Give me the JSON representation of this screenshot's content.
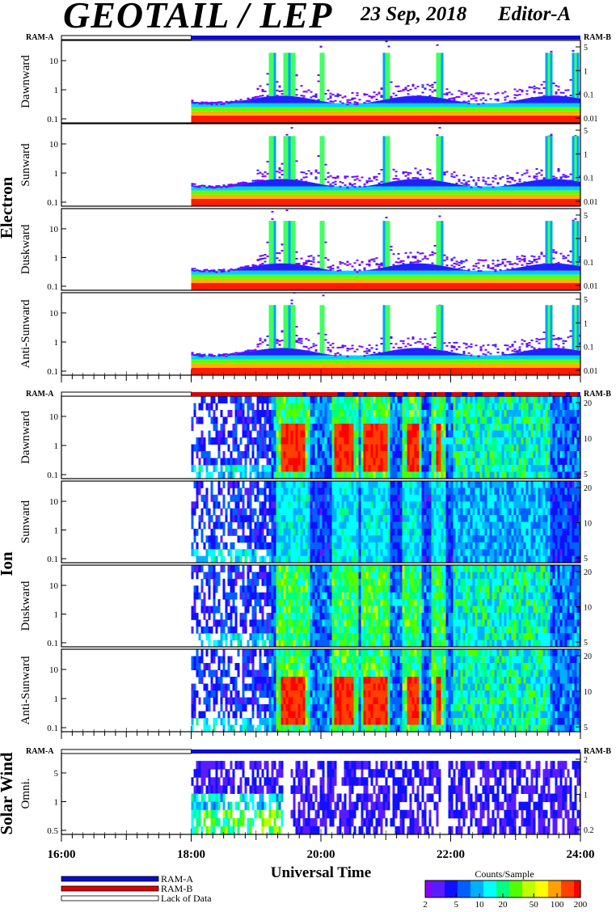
{
  "header": {
    "title": "GEOTAIL / LEP",
    "date": "23 Sep, 2018",
    "editor": "Editor-A"
  },
  "colors": {
    "ram_a": "#0a0ad0",
    "ram_b": "#e00000",
    "lack_of_data": "#ffffff",
    "colormap": [
      "#8800ff",
      "#5a1cff",
      "#1010ff",
      "#0060ff",
      "#00b0ff",
      "#00ffff",
      "#00ff80",
      "#50ff00",
      "#c0ff00",
      "#ffff00",
      "#ffa000",
      "#ff4000",
      "#ff0000"
    ]
  },
  "chart_data": {
    "type": "heatmap",
    "x_axis": {
      "label": "Universal Time",
      "range": [
        "16:00",
        "24:00"
      ],
      "major_ticks": [
        "16:00",
        "18:00",
        "20:00",
        "22:00",
        "24:00"
      ],
      "data_start": "18:00"
    },
    "panel_groups": [
      {
        "name": "Electron",
        "ram_left": "RAM-A",
        "ram_right": "RAM-B",
        "ram_bar": [
          {
            "from": "16:00",
            "to": "18:00",
            "mode": "lack_of_data"
          },
          {
            "from": "18:00",
            "to": "24:00",
            "mode": "ram_a"
          }
        ],
        "panels": [
          {
            "name": "Dawnward",
            "left_ticks": [
              "10",
              "1",
              "0.1"
            ],
            "right_ticks": [
              "5",
              "1",
              "0.1",
              "0.01"
            ]
          },
          {
            "name": "Sunward",
            "left_ticks": [
              "10",
              "1",
              "0.1"
            ],
            "right_ticks": [
              "5",
              "1",
              "0.1",
              "0.01"
            ]
          },
          {
            "name": "Duskward",
            "left_ticks": [
              "10",
              "1",
              "0.1"
            ],
            "right_ticks": [
              "5",
              "1",
              "0.1",
              "0.01"
            ]
          },
          {
            "name": "Anti-Sunward",
            "left_ticks": [
              "10",
              "1",
              "0.1"
            ],
            "right_ticks": [
              "5",
              "1",
              "0.1",
              "0.01"
            ]
          }
        ]
      },
      {
        "name": "Ion",
        "ram_left": "RAM-A",
        "ram_right": "RAM-B",
        "ram_bar": [
          {
            "from": "16:00",
            "to": "18:00",
            "mode": "lack_of_data"
          },
          {
            "from": "18:00",
            "to": "24:00",
            "mode": "ram_b_mixed"
          }
        ],
        "panels": [
          {
            "name": "Dawnward",
            "left_ticks": [
              "10",
              "1",
              "0.1"
            ],
            "right_ticks": [
              "20",
              "10",
              "5"
            ]
          },
          {
            "name": "Sunward",
            "left_ticks": [
              "10",
              "1",
              "0.1"
            ],
            "right_ticks": [
              "20",
              "10",
              "5"
            ]
          },
          {
            "name": "Duskward",
            "left_ticks": [
              "10",
              "1",
              "0.1"
            ],
            "right_ticks": [
              "20",
              "10",
              "5"
            ]
          },
          {
            "name": "Anti-Sunward",
            "left_ticks": [
              "10",
              "1",
              "0.1"
            ],
            "right_ticks": [
              "20",
              "10",
              "5"
            ]
          }
        ]
      },
      {
        "name": "Solar Wind",
        "ram_left": "RAM-A",
        "ram_right": "RAM-B",
        "ram_bar": [
          {
            "from": "16:00",
            "to": "18:00",
            "mode": "lack_of_data"
          },
          {
            "from": "18:00",
            "to": "24:00",
            "mode": "ram_a"
          }
        ],
        "panels": [
          {
            "name": "Omni.",
            "left_ticks": [
              "5",
              "1",
              "0.5"
            ],
            "right_ticks": [
              "2",
              "1",
              "0.2"
            ]
          }
        ]
      }
    ],
    "legend": [
      {
        "label": "RAM-A",
        "color": "#0a0ad0"
      },
      {
        "label": "RAM-B",
        "color": "#e00000"
      },
      {
        "label": "Lack of Data",
        "color": "#ffffff"
      }
    ],
    "colorbar": {
      "title": "Counts/Sample",
      "ticks": [
        "2",
        "5",
        "10",
        "20",
        "50",
        "100",
        "200"
      ],
      "range": [
        2,
        200
      ],
      "scale": "log"
    }
  }
}
